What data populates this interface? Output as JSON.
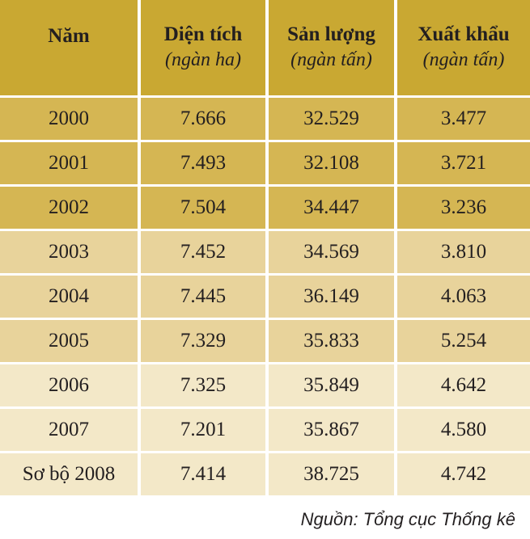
{
  "table": {
    "header": [
      {
        "title": "Năm",
        "unit": ""
      },
      {
        "title": "Diện tích",
        "unit": "(ngàn ha)"
      },
      {
        "title": "Sản lượng",
        "unit": "(ngàn tấn)"
      },
      {
        "title": "Xuất khẩu",
        "unit": "(ngàn tấn)"
      }
    ],
    "rows": [
      {
        "year": "2000",
        "area": "7.666",
        "output": "32.529",
        "export": "3.477",
        "shade": "#d5b653"
      },
      {
        "year": "2001",
        "area": "7.493",
        "output": "32.108",
        "export": "3.721",
        "shade": "#d5b653"
      },
      {
        "year": "2002",
        "area": "7.504",
        "output": "34.447",
        "export": "3.236",
        "shade": "#d5b653"
      },
      {
        "year": "2003",
        "area": "7.452",
        "output": "34.569",
        "export": "3.810",
        "shade": "#e8d39b"
      },
      {
        "year": "2004",
        "area": "7.445",
        "output": "36.149",
        "export": "4.063",
        "shade": "#e8d39b"
      },
      {
        "year": "2005",
        "area": "7.329",
        "output": "35.833",
        "export": "5.254",
        "shade": "#e8d39b"
      },
      {
        "year": "2006",
        "area": "7.325",
        "output": "35.849",
        "export": "4.642",
        "shade": "#f3e8c8"
      },
      {
        "year": "2007",
        "area": "7.201",
        "output": "35.867",
        "export": "4.580",
        "shade": "#f3e8c8"
      },
      {
        "year": "Sơ bộ 2008",
        "area": "7.414",
        "output": "38.725",
        "export": "4.742",
        "shade": "#f3e8c8"
      }
    ]
  },
  "source": "Nguồn: Tổng cục Thống kê",
  "colors": {
    "header": "#c9a832",
    "dark": "#d5b653",
    "medium": "#e8d39b",
    "light": "#f3e8c8"
  }
}
